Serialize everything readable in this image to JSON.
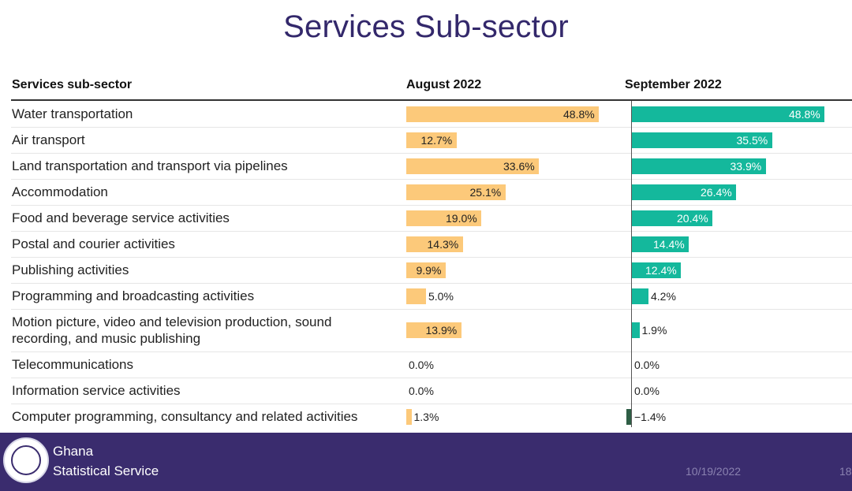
{
  "title": "Services Sub-sector",
  "table": {
    "col_category": "Services sub-sector",
    "col_aug": "August 2022",
    "col_sep": "September 2022"
  },
  "chart_data": {
    "type": "bar",
    "orientation": "horizontal",
    "categories": [
      "Water transportation",
      "Air transport",
      "Land transportation and transport via pipelines",
      "Accommodation",
      "Food and beverage service activities",
      "Postal and courier activities",
      "Publishing activities",
      "Programming and broadcasting activities",
      "Motion picture, video and television production, sound recording, and music publishing",
      "Telecommunications",
      "Information service activities",
      "Computer programming, consultancy and related activities"
    ],
    "series": [
      {
        "name": "August 2022",
        "values": [
          48.8,
          12.7,
          33.6,
          25.1,
          19.0,
          14.3,
          9.9,
          5.0,
          13.9,
          0.0,
          0.0,
          1.3
        ],
        "labels": [
          "48.8%",
          "12.7%",
          "33.6%",
          "25.1%",
          "19.0%",
          "14.3%",
          "9.9%",
          "5.0%",
          "13.9%",
          "0.0%",
          "0.0%",
          "1.3%"
        ],
        "color": "#fcc97a"
      },
      {
        "name": "September 2022",
        "values": [
          48.8,
          35.5,
          33.9,
          26.4,
          20.4,
          14.4,
          12.4,
          4.2,
          1.9,
          0.0,
          0.0,
          -1.4
        ],
        "labels": [
          "48.8%",
          "35.5%",
          "33.9%",
          "26.4%",
          "20.4%",
          "14.4%",
          "12.4%",
          "4.2%",
          "1.9%",
          "0.0%",
          "0.0%",
          "−1.4%"
        ],
        "color": "#14b89c",
        "negative_color": "#2e5e45"
      }
    ],
    "xlim": [
      0,
      50
    ]
  },
  "footer": {
    "org_line1": "Ghana",
    "org_line2": "Statistical Service",
    "date": "10/19/2022",
    "page": "18"
  }
}
